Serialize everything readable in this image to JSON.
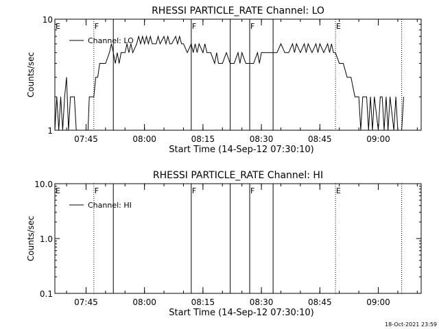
{
  "footer": {
    "timestamp": "18-Oct-2021 23:59"
  },
  "chart_data": [
    {
      "type": "line",
      "title": "RHESSI PARTICLE_RATE Channel: LO",
      "xlabel": "Start Time (14-Sep-12 07:30:10)",
      "ylabel": "Counts/sec",
      "yscale": "log",
      "ylim": [
        1,
        10
      ],
      "yticks": [
        1,
        10
      ],
      "yticklabels": [
        "1",
        "10"
      ],
      "xlim": [
        "07:37",
        "09:11"
      ],
      "xticks": [
        "07:45",
        "08:00",
        "08:15",
        "08:30",
        "08:45",
        "09:00"
      ],
      "legend": {
        "placement": "top-left",
        "entries": [
          {
            "name": "Channel: LO",
            "color": "#000000"
          }
        ]
      },
      "markers": [
        {
          "label": "E",
          "time": "07:37",
          "style": "none"
        },
        {
          "label": "F",
          "time": "07:47",
          "style": "dotted"
        },
        {
          "label": "",
          "time": "07:52",
          "style": "solid"
        },
        {
          "label": "F",
          "time": "08:12",
          "style": "solid"
        },
        {
          "label": "",
          "time": "08:22",
          "style": "solid"
        },
        {
          "label": "F",
          "time": "08:27",
          "style": "solid"
        },
        {
          "label": "",
          "time": "08:33",
          "style": "solid"
        },
        {
          "label": "E",
          "time": "08:49",
          "style": "dotted"
        },
        {
          "label": "",
          "time": "09:06",
          "style": "dotted"
        }
      ],
      "series": [
        {
          "name": "Channel: LO",
          "color": "#000000",
          "points": [
            [
              "07:37:00",
              1
            ],
            [
              "07:37:30",
              2
            ],
            [
              "07:38:00",
              1
            ],
            [
              "07:38:30",
              2
            ],
            [
              "07:39:00",
              1
            ],
            [
              "07:39:30",
              2
            ],
            [
              "07:40:00",
              3
            ],
            [
              "07:40:30",
              1
            ],
            [
              "07:41:00",
              2
            ],
            [
              "07:42:00",
              2
            ],
            [
              "07:42:30",
              1
            ],
            [
              "07:43:30",
              1
            ],
            [
              "07:44:30",
              1
            ],
            [
              "07:45:30",
              1
            ],
            [
              "07:45:50",
              2
            ],
            [
              "07:47:00",
              2
            ],
            [
              "07:47:30",
              3
            ],
            [
              "07:48:00",
              3
            ],
            [
              "07:48:30",
              4
            ],
            [
              "07:49:00",
              4
            ],
            [
              "07:50:00",
              4
            ],
            [
              "07:51:00",
              5
            ],
            [
              "07:51:30",
              6
            ],
            [
              "07:52:00",
              5
            ],
            [
              "07:52:30",
              4
            ],
            [
              "07:53:00",
              5
            ],
            [
              "07:53:30",
              4
            ],
            [
              "07:54:00",
              5
            ],
            [
              "07:55:00",
              5
            ],
            [
              "07:55:30",
              6
            ],
            [
              "07:56:00",
              5
            ],
            [
              "07:56:30",
              6
            ],
            [
              "07:57:00",
              5
            ],
            [
              "07:58:00",
              6
            ],
            [
              "07:58:30",
              7
            ],
            [
              "07:59:00",
              6
            ],
            [
              "07:59:30",
              7
            ],
            [
              "08:00:00",
              6
            ],
            [
              "08:00:30",
              7
            ],
            [
              "08:01:00",
              6
            ],
            [
              "08:01:30",
              7
            ],
            [
              "08:02:00",
              6
            ],
            [
              "08:03:00",
              6
            ],
            [
              "08:03:30",
              7
            ],
            [
              "08:04:00",
              6
            ],
            [
              "08:05:00",
              7
            ],
            [
              "08:05:30",
              6
            ],
            [
              "08:06:00",
              7
            ],
            [
              "08:06:30",
              6
            ],
            [
              "08:07:00",
              6
            ],
            [
              "08:08:00",
              7
            ],
            [
              "08:08:30",
              6
            ],
            [
              "08:09:00",
              7
            ],
            [
              "08:09:30",
              6
            ],
            [
              "08:10:00",
              6
            ],
            [
              "08:11:00",
              5
            ],
            [
              "08:12:00",
              6
            ],
            [
              "08:12:30",
              5
            ],
            [
              "08:13:00",
              6
            ],
            [
              "08:13:30",
              5
            ],
            [
              "08:14:00",
              6
            ],
            [
              "08:15:00",
              5
            ],
            [
              "08:15:30",
              6
            ],
            [
              "08:16:00",
              5
            ],
            [
              "08:17:00",
              5
            ],
            [
              "08:18:00",
              4
            ],
            [
              "08:18:30",
              5
            ],
            [
              "08:19:00",
              4
            ],
            [
              "08:20:00",
              4
            ],
            [
              "08:21:00",
              5
            ],
            [
              "08:22:00",
              4
            ],
            [
              "08:23:00",
              4
            ],
            [
              "08:24:00",
              5
            ],
            [
              "08:24:30",
              4
            ],
            [
              "08:25:00",
              5
            ],
            [
              "08:26:00",
              4
            ],
            [
              "08:27:00",
              4
            ],
            [
              "08:28:00",
              4
            ],
            [
              "08:29:00",
              5
            ],
            [
              "08:29:30",
              4
            ],
            [
              "08:30:00",
              5
            ],
            [
              "08:31:00",
              5
            ],
            [
              "08:32:00",
              5
            ],
            [
              "08:33:00",
              5
            ],
            [
              "08:34:00",
              5
            ],
            [
              "08:35:00",
              6
            ],
            [
              "08:36:00",
              5
            ],
            [
              "08:37:00",
              5
            ],
            [
              "08:38:00",
              6
            ],
            [
              "08:38:30",
              5
            ],
            [
              "08:39:00",
              6
            ],
            [
              "08:40:00",
              5
            ],
            [
              "08:41:00",
              6
            ],
            [
              "08:41:30",
              5
            ],
            [
              "08:42:00",
              6
            ],
            [
              "08:43:00",
              5
            ],
            [
              "08:44:00",
              6
            ],
            [
              "08:44:30",
              5
            ],
            [
              "08:45:00",
              6
            ],
            [
              "08:46:00",
              5
            ],
            [
              "08:47:00",
              6
            ],
            [
              "08:47:30",
              5
            ],
            [
              "08:48:00",
              6
            ],
            [
              "08:48:30",
              5
            ],
            [
              "08:49:00",
              5
            ],
            [
              "08:50:00",
              4
            ],
            [
              "08:51:00",
              4
            ],
            [
              "08:52:00",
              3
            ],
            [
              "08:53:00",
              3
            ],
            [
              "08:54:00",
              2
            ],
            [
              "08:55:00",
              2
            ],
            [
              "08:55:30",
              1
            ],
            [
              "08:56:00",
              2
            ],
            [
              "08:57:00",
              2
            ],
            [
              "08:57:30",
              1
            ],
            [
              "08:58:00",
              2
            ],
            [
              "08:58:30",
              1
            ],
            [
              "08:59:00",
              2
            ],
            [
              "09:00:00",
              1
            ],
            [
              "09:00:30",
              2
            ],
            [
              "09:01:00",
              2
            ],
            [
              "09:01:30",
              1
            ],
            [
              "09:02:00",
              2
            ],
            [
              "09:02:30",
              1
            ],
            [
              "09:03:00",
              2
            ],
            [
              "09:04:00",
              1
            ],
            [
              "09:04:30",
              2
            ],
            [
              "09:05:00",
              1
            ],
            [
              "09:06:00",
              1
            ],
            [
              "09:06:30",
              2
            ]
          ]
        }
      ]
    },
    {
      "type": "line",
      "title": "RHESSI PARTICLE_RATE Channel: HI",
      "xlabel": "Start Time (14-Sep-12 07:30:10)",
      "ylabel": "Counts/sec",
      "yscale": "log",
      "ylim": [
        0.1,
        10
      ],
      "yticks": [
        0.1,
        1,
        10
      ],
      "yticklabels": [
        "0.1",
        "1.0",
        "10.0"
      ],
      "xlim": [
        "07:37",
        "09:11"
      ],
      "xticks": [
        "07:45",
        "08:00",
        "08:15",
        "08:30",
        "08:45",
        "09:00"
      ],
      "legend": {
        "placement": "top-left",
        "entries": [
          {
            "name": "Channel: HI",
            "color": "#000000"
          }
        ]
      },
      "markers": [
        {
          "label": "E",
          "time": "07:37",
          "style": "none"
        },
        {
          "label": "F",
          "time": "07:47",
          "style": "dotted"
        },
        {
          "label": "",
          "time": "07:52",
          "style": "solid"
        },
        {
          "label": "F",
          "time": "08:12",
          "style": "solid"
        },
        {
          "label": "",
          "time": "08:22",
          "style": "solid"
        },
        {
          "label": "F",
          "time": "08:27",
          "style": "solid"
        },
        {
          "label": "",
          "time": "08:33",
          "style": "solid"
        },
        {
          "label": "E",
          "time": "08:49",
          "style": "dotted"
        },
        {
          "label": "",
          "time": "09:06",
          "style": "dotted"
        }
      ],
      "series": [
        {
          "name": "Channel: HI",
          "color": "#000000",
          "points": []
        }
      ]
    }
  ]
}
